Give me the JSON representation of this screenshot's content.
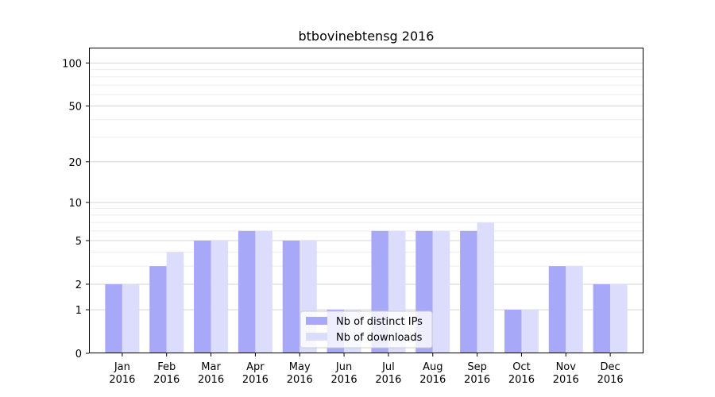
{
  "chart_data": {
    "type": "bar",
    "title": "btbovinebtensg 2016",
    "xlabel": "",
    "ylabel": "",
    "y_scale": "log(1+y)",
    "ylim": [
      0,
      120
    ],
    "yticks": [
      0,
      1,
      2,
      5,
      10,
      20,
      50,
      100
    ],
    "grid": true,
    "legend_position": "lower-center",
    "categories": [
      "Jan\n2016",
      "Feb\n2016",
      "Mar\n2016",
      "Apr\n2016",
      "May\n2016",
      "Jun\n2016",
      "Jul\n2016",
      "Aug\n2016",
      "Sep\n2016",
      "Oct\n2016",
      "Nov\n2016",
      "Dec\n2016"
    ],
    "series": [
      {
        "name": "Nb of distinct IPs",
        "color": "#a8a8f8",
        "values": [
          2,
          3,
          5,
          6,
          5,
          1,
          6,
          6,
          6,
          1,
          3,
          2
        ]
      },
      {
        "name": "Nb of downloads",
        "color": "#dcdcfc",
        "values": [
          2,
          4,
          5,
          6,
          5,
          1,
          6,
          6,
          7,
          1,
          3,
          2
        ]
      }
    ]
  }
}
